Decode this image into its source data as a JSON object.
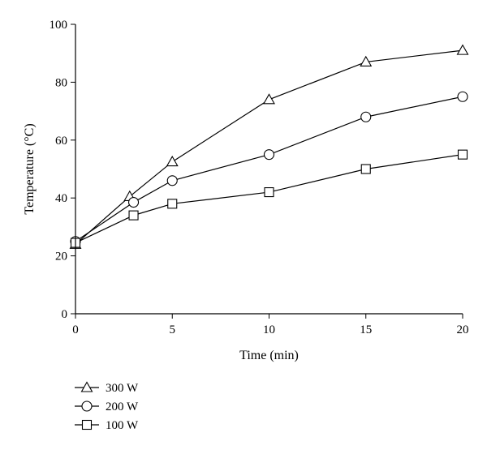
{
  "chart_data": {
    "type": "line",
    "xlabel": "Time (min)",
    "ylabel": "Temperature (°C)",
    "xlim": [
      0,
      20
    ],
    "ylim": [
      0,
      100
    ],
    "xticks": [
      0,
      5,
      10,
      15,
      20
    ],
    "yticks": [
      0,
      20,
      40,
      60,
      80,
      100
    ],
    "grid": false,
    "legend_position": "bottom-left",
    "series": [
      {
        "name": "300 W",
        "marker": "triangle",
        "x": [
          0,
          2.8,
          5,
          10,
          15,
          20
        ],
        "y": [
          24,
          40.5,
          52.5,
          74,
          87,
          91
        ]
      },
      {
        "name": "200 W",
        "marker": "circle",
        "x": [
          0,
          3,
          5,
          10,
          15,
          20
        ],
        "y": [
          25,
          38.5,
          46,
          55,
          68,
          75
        ]
      },
      {
        "name": "100 W",
        "marker": "square",
        "x": [
          0,
          3,
          5,
          10,
          15,
          20
        ],
        "y": [
          24.5,
          34,
          38,
          42,
          50,
          55
        ]
      }
    ]
  }
}
